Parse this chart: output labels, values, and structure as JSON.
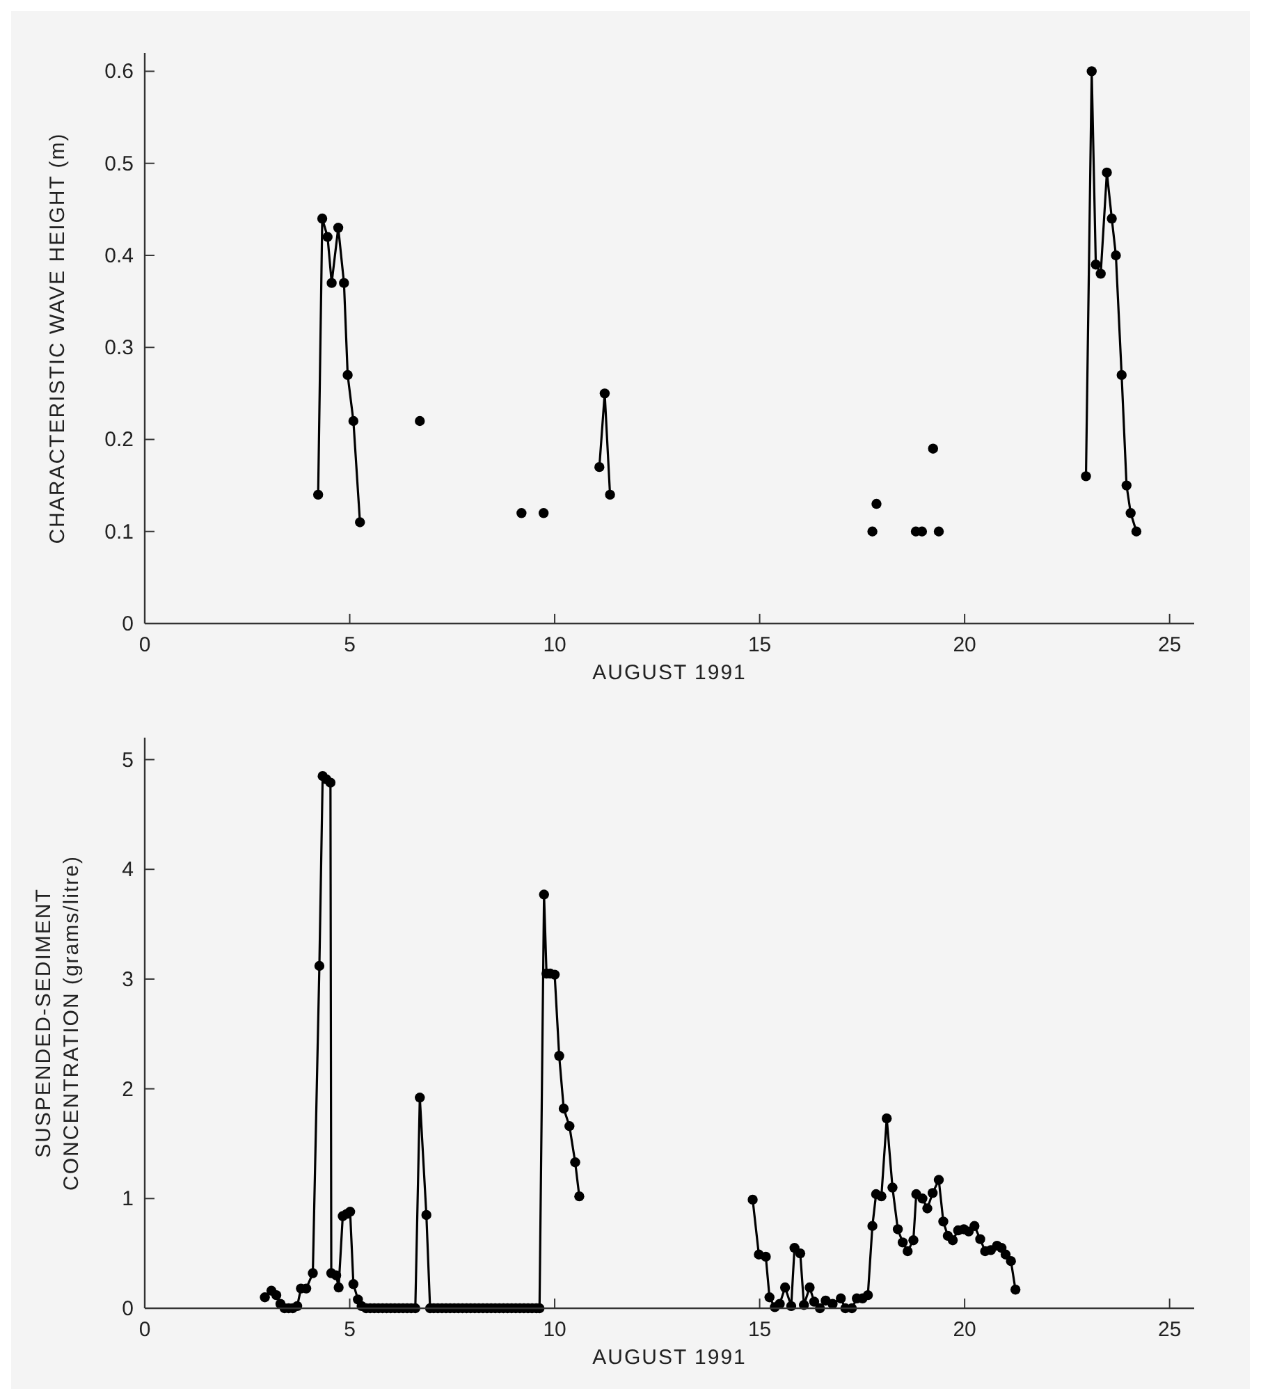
{
  "chart_data": [
    {
      "type": "line",
      "xlabel": "AUGUST 1991",
      "ylabel": "CHARACTERISTIC WAVE HEIGHT  (m)",
      "xlim": [
        0,
        25.6
      ],
      "xticks": [
        0,
        5,
        10,
        15,
        20,
        25
      ],
      "ylim": [
        0,
        0.62
      ],
      "yticks": [
        0,
        0.1,
        0.2,
        0.3,
        0.4,
        0.5,
        0.6
      ],
      "grid": false,
      "marker": "circle",
      "line_style": "solid",
      "series": [
        {
          "color": "#000000",
          "x": [
            4.23,
            4.33,
            4.46,
            4.56,
            4.72,
            4.86,
            4.95,
            5.09,
            5.25
          ],
          "values": [
            0.14,
            0.44,
            0.42,
            0.37,
            0.43,
            0.37,
            0.27,
            0.22,
            0.11
          ]
        },
        {
          "type": "scatter",
          "color": "#000000",
          "x": [
            6.71,
            9.19,
            9.73,
            17.75,
            17.85,
            18.81,
            18.96,
            19.23,
            19.37
          ],
          "values": [
            0.22,
            0.12,
            0.12,
            0.1,
            0.13,
            0.1,
            0.1,
            0.19,
            0.1
          ]
        },
        {
          "color": "#000000",
          "x": [
            11.09,
            11.22,
            11.35
          ],
          "values": [
            0.17,
            0.25,
            0.14
          ]
        },
        {
          "color": "#000000",
          "x": [
            22.96,
            23.1,
            23.2,
            23.32,
            23.47,
            23.59,
            23.69,
            23.83,
            23.95,
            24.05,
            24.19
          ],
          "values": [
            0.16,
            0.6,
            0.39,
            0.38,
            0.49,
            0.44,
            0.4,
            0.27,
            0.15,
            0.12,
            0.1
          ]
        }
      ]
    },
    {
      "type": "line",
      "xlabel": "AUGUST 1991",
      "ylabel": "SUSPENDED-SEDIMENT\nCONCENTRATION (grams/litre)",
      "xlim": [
        0,
        25.6
      ],
      "xticks": [
        0,
        5,
        10,
        15,
        20,
        25
      ],
      "ylim": [
        0,
        5.2
      ],
      "yticks": [
        0,
        1,
        2,
        3,
        4,
        5
      ],
      "grid": false,
      "marker": "circle",
      "line_style": "solid",
      "series": [
        {
          "color": "#000000",
          "x": [
            2.93,
            3.09,
            3.21,
            3.31,
            3.41,
            3.51,
            3.61,
            3.72,
            3.81,
            3.94,
            4.1,
            4.26,
            4.34,
            4.43,
            4.53,
            4.55,
            4.67,
            4.73,
            4.83,
            4.93,
            5.01,
            5.09,
            5.2,
            5.29,
            5.4,
            5.5,
            5.6,
            5.7,
            5.8,
            5.9,
            6.0,
            6.1,
            6.2,
            6.3,
            6.4,
            6.5,
            6.6,
            6.71,
            6.87,
            6.96,
            7.05,
            7.15,
            7.25,
            7.35,
            7.45,
            7.55,
            7.65,
            7.75,
            7.85,
            7.95,
            8.05,
            8.15,
            8.25,
            8.35,
            8.45,
            8.55,
            8.65,
            8.75,
            8.85,
            8.95,
            9.05,
            9.15,
            9.25,
            9.35,
            9.45,
            9.55,
            9.63,
            9.74,
            9.8,
            9.89,
            10.0,
            10.11,
            10.22,
            10.36,
            10.5,
            10.6
          ],
          "values": [
            0.1,
            0.16,
            0.12,
            0.04,
            0,
            0,
            0,
            0.02,
            0.18,
            0.18,
            0.32,
            3.12,
            4.85,
            4.82,
            4.79,
            0.32,
            0.3,
            0.19,
            0.84,
            0.86,
            0.88,
            0.22,
            0.08,
            0.02,
            0,
            0,
            0,
            0,
            0,
            0,
            0,
            0,
            0,
            0,
            0,
            0,
            0,
            1.92,
            0.85,
            0,
            0,
            0,
            0,
            0,
            0,
            0,
            0,
            0,
            0,
            0,
            0,
            0,
            0,
            0,
            0,
            0,
            0,
            0,
            0,
            0,
            0,
            0,
            0,
            0,
            0,
            0,
            0,
            3.77,
            3.05,
            3.05,
            3.04,
            2.3,
            1.82,
            1.66,
            1.33,
            1.02
          ]
        },
        {
          "color": "#000000",
          "x": [
            14.83,
            14.98,
            15.15,
            15.24,
            15.37,
            15.49,
            15.62,
            15.77,
            15.85,
            15.99,
            16.08,
            16.22,
            16.33,
            16.47,
            16.61,
            16.78,
            16.98,
            17.09,
            17.25,
            17.37,
            17.51,
            17.64,
            17.75,
            17.84,
            17.97,
            18.1,
            18.24,
            18.37,
            18.49,
            18.61,
            18.75,
            18.82,
            18.97,
            19.09,
            19.22,
            19.37,
            19.48,
            19.59,
            19.71,
            19.84,
            19.98,
            20.1,
            20.24,
            20.38,
            20.5,
            20.64,
            20.79,
            20.9,
            21.0,
            21.13,
            21.24
          ],
          "values": [
            0.99,
            0.49,
            0.47,
            0.1,
            0.01,
            0.04,
            0.19,
            0.02,
            0.55,
            0.5,
            0.03,
            0.19,
            0.06,
            0,
            0.07,
            0.04,
            0.09,
            0,
            0,
            0.09,
            0.09,
            0.12,
            0.75,
            1.04,
            1.02,
            1.73,
            1.1,
            0.72,
            0.6,
            0.52,
            0.62,
            1.04,
            1.0,
            0.91,
            1.05,
            1.17,
            0.79,
            0.66,
            0.62,
            0.71,
            0.72,
            0.7,
            0.75,
            0.63,
            0.52,
            0.53,
            0.57,
            0.55,
            0.49,
            0.43,
            0.17
          ]
        }
      ]
    }
  ]
}
